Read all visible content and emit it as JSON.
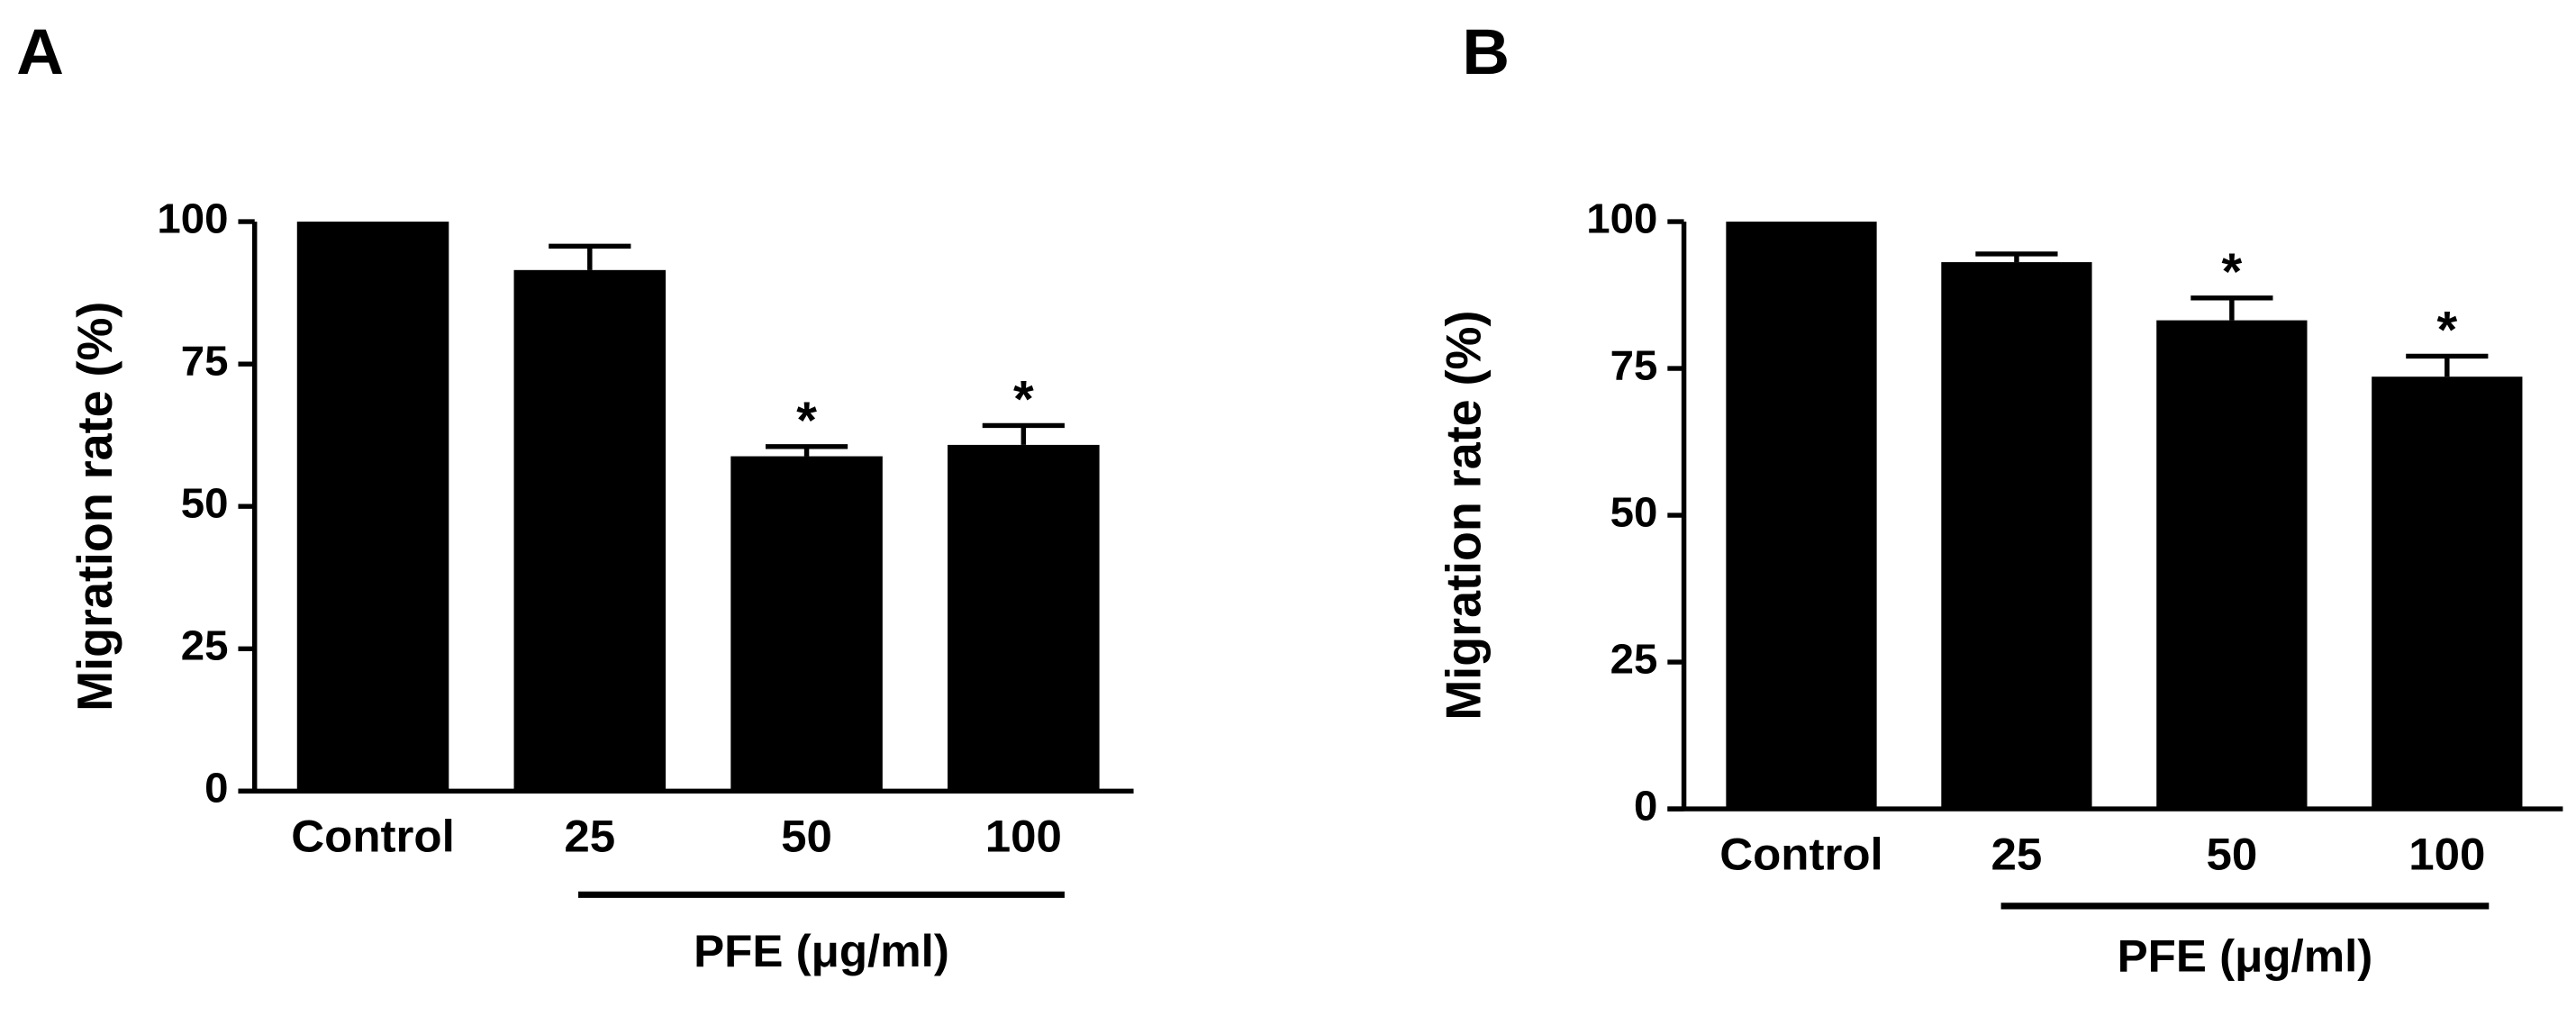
{
  "chart_data": [
    {
      "type": "bar",
      "panel": "A",
      "y_label": "Migration rate (%)",
      "categories": [
        "Control",
        "25",
        "50",
        "100"
      ],
      "values": [
        100,
        91.5,
        58.8,
        60.8
      ],
      "errors": [
        0,
        4.2,
        1.7,
        3.4
      ],
      "annotations": [
        null,
        null,
        "*",
        "*"
      ],
      "x_group_label": "PFE (μg/ml)",
      "color": "#000000",
      "ylim": [
        0,
        100
      ],
      "yticks": [
        0,
        25,
        50,
        75,
        100
      ]
    },
    {
      "type": "bar",
      "panel": "B",
      "y_label": "Migration rate (%)",
      "categories": [
        "Control",
        "25",
        "50",
        "100"
      ],
      "values": [
        100,
        93.1,
        83.2,
        73.6
      ],
      "errors": [
        0,
        1.4,
        3.8,
        3.5
      ],
      "annotations": [
        null,
        null,
        "*",
        "*"
      ],
      "x_group_label": "PFE (μg/ml)",
      "color": "#000000",
      "ylim": [
        0,
        100
      ],
      "yticks": [
        0,
        25,
        50,
        75,
        100
      ]
    }
  ]
}
